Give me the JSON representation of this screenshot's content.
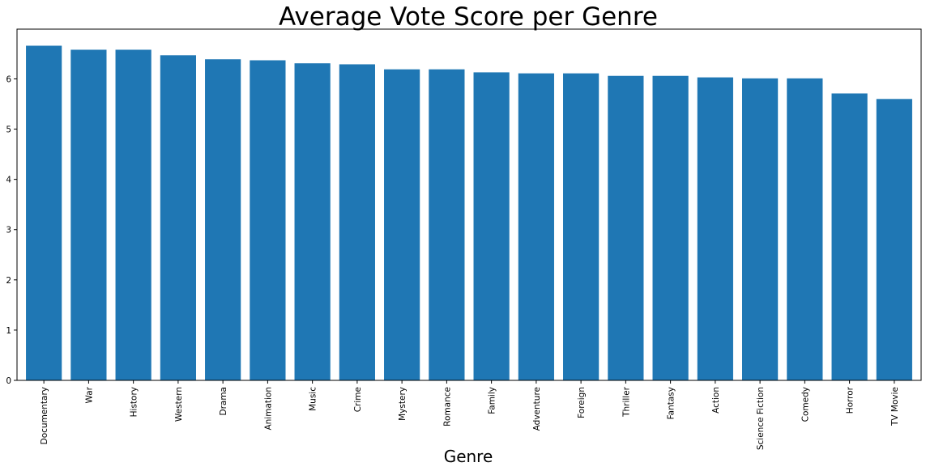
{
  "chart_data": {
    "type": "bar",
    "title": "Average Vote Score per Genre",
    "xlabel": "Genre",
    "ylabel": "",
    "ylim": [
      0,
      6.99
    ],
    "yticks": [
      0,
      1,
      2,
      3,
      4,
      5,
      6
    ],
    "grid": false,
    "legend": "none",
    "bar_color": "#1f77b4",
    "categories": [
      "Documentary",
      "War",
      "History",
      "Western",
      "Drama",
      "Animation",
      "Music",
      "Crime",
      "Mystery",
      "Romance",
      "Family",
      "Adventure",
      "Foreign",
      "Thriller",
      "Fantasy",
      "Action",
      "Science Fiction",
      "Comedy",
      "Horror",
      "TV Movie"
    ],
    "values": [
      6.66,
      6.58,
      6.58,
      6.47,
      6.39,
      6.37,
      6.31,
      6.29,
      6.19,
      6.19,
      6.13,
      6.11,
      6.11,
      6.06,
      6.06,
      6.03,
      6.01,
      6.01,
      5.71,
      5.6
    ]
  }
}
